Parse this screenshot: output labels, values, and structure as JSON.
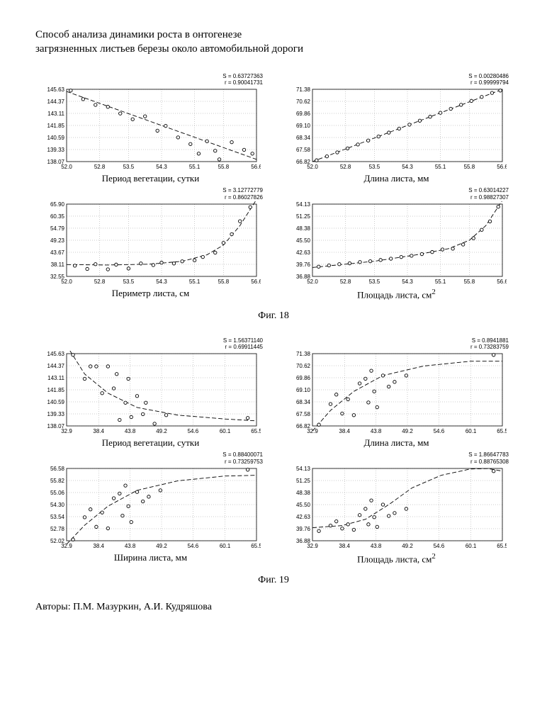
{
  "title_line1": "Способ анализа динамики роста в онтогенезе",
  "title_line2": "загрязненных листьев березы около автомобильной дороги",
  "fig18_caption": "Фиг. 18",
  "fig19_caption": "Фиг. 19",
  "authors_label": "Авторы:  П.М. Мазуркин, А.И. Кудряшова",
  "fig18": {
    "charts": [
      {
        "stats": {
          "S": "S = 0.63727363",
          "r": "r = 0.90041731"
        },
        "xlabel": "Период вегетации, сутки",
        "xlim": [
          52.0,
          56.6
        ],
        "ylim": [
          138.07,
          145.63
        ],
        "yticks": [
          138.07,
          139.33,
          140.59,
          141.85,
          143.11,
          144.37,
          145.63
        ],
        "xticks": [
          52.0,
          52.8,
          53.5,
          54.3,
          55.1,
          55.8,
          56.6
        ],
        "type": "linear-down",
        "points": [
          [
            52.1,
            145.5
          ],
          [
            52.4,
            144.6
          ],
          [
            52.7,
            144.0
          ],
          [
            53.0,
            143.8
          ],
          [
            53.3,
            143.1
          ],
          [
            53.6,
            142.5
          ],
          [
            53.9,
            142.8
          ],
          [
            54.2,
            141.3
          ],
          [
            54.4,
            141.8
          ],
          [
            54.7,
            140.6
          ],
          [
            55.0,
            139.9
          ],
          [
            55.2,
            138.9
          ],
          [
            55.4,
            140.2
          ],
          [
            55.6,
            139.2
          ],
          [
            55.7,
            138.3
          ],
          [
            56.0,
            140.1
          ],
          [
            56.3,
            139.3
          ],
          [
            56.5,
            138.9
          ]
        ],
        "curve": [
          [
            52.0,
            145.4
          ],
          [
            56.6,
            138.3
          ]
        ],
        "colors": {
          "border": "#000",
          "grid": "#bbb",
          "marker": "#000",
          "line": "#000"
        }
      },
      {
        "stats": {
          "S": "S = 0.00280486",
          "r": "r = 0.99999794"
        },
        "xlabel": "Длина листа, мм",
        "xlim": [
          52.0,
          56.6
        ],
        "ylim": [
          66.82,
          71.38
        ],
        "yticks": [
          66.82,
          67.58,
          68.34,
          69.1,
          69.86,
          70.62,
          71.38
        ],
        "xticks": [
          52.0,
          52.8,
          53.5,
          54.3,
          55.1,
          55.8,
          56.6
        ],
        "type": "linear-up",
        "points": [
          [
            52.1,
            66.9
          ],
          [
            52.35,
            67.15
          ],
          [
            52.6,
            67.4
          ],
          [
            52.85,
            67.65
          ],
          [
            53.1,
            67.9
          ],
          [
            53.35,
            68.15
          ],
          [
            53.6,
            68.4
          ],
          [
            53.85,
            68.65
          ],
          [
            54.1,
            68.9
          ],
          [
            54.35,
            69.15
          ],
          [
            54.6,
            69.4
          ],
          [
            54.85,
            69.65
          ],
          [
            55.1,
            69.9
          ],
          [
            55.35,
            70.15
          ],
          [
            55.6,
            70.4
          ],
          [
            55.85,
            70.65
          ],
          [
            56.1,
            70.9
          ],
          [
            56.35,
            71.15
          ],
          [
            56.55,
            71.3
          ]
        ],
        "curve": [
          [
            52.0,
            66.82
          ],
          [
            56.6,
            71.38
          ]
        ],
        "colors": {
          "border": "#000",
          "grid": "#bbb",
          "marker": "#000",
          "line": "#000"
        }
      },
      {
        "stats": {
          "S": "S = 3.12772779",
          "r": "r = 0.86027826"
        },
        "xlabel": "Периметр листа, см",
        "xlabel_sup": "",
        "xlim": [
          52.0,
          56.6
        ],
        "ylim": [
          32.55,
          65.9
        ],
        "yticks": [
          32.55,
          38.11,
          43.67,
          49.23,
          54.79,
          60.35,
          65.9
        ],
        "xticks": [
          52.0,
          52.8,
          53.5,
          54.3,
          55.1,
          55.8,
          56.6
        ],
        "type": "exp-up",
        "points": [
          [
            52.2,
            37.5
          ],
          [
            52.5,
            36.0
          ],
          [
            52.7,
            38.2
          ],
          [
            53.0,
            35.8
          ],
          [
            53.2,
            38.0
          ],
          [
            53.5,
            36.2
          ],
          [
            53.8,
            38.5
          ],
          [
            54.1,
            37.8
          ],
          [
            54.3,
            38.9
          ],
          [
            54.6,
            38.5
          ],
          [
            54.8,
            39.5
          ],
          [
            55.1,
            40.0
          ],
          [
            55.3,
            41.5
          ],
          [
            55.6,
            43.5
          ],
          [
            55.8,
            48.0
          ],
          [
            56.0,
            52.0
          ],
          [
            56.2,
            58.0
          ],
          [
            56.45,
            64.5
          ]
        ],
        "curve": [
          [
            52.0,
            38.0
          ],
          [
            53.0,
            37.8
          ],
          [
            54.0,
            38.2
          ],
          [
            54.8,
            39.5
          ],
          [
            55.4,
            42.5
          ],
          [
            55.8,
            47.0
          ],
          [
            56.2,
            56.0
          ],
          [
            56.6,
            68.0
          ]
        ],
        "colors": {
          "border": "#000",
          "grid": "#bbb",
          "marker": "#000",
          "line": "#000"
        }
      },
      {
        "stats": {
          "S": "S = 0.63014227",
          "r": "r = 0.98827307"
        },
        "xlabel": "Площадь листа, см",
        "xlabel_sup": "2",
        "xlim": [
          52.0,
          56.6
        ],
        "ylim": [
          36.88,
          54.13
        ],
        "yticks": [
          36.88,
          39.76,
          42.63,
          45.5,
          48.38,
          51.25,
          54.13
        ],
        "xticks": [
          52.0,
          52.8,
          53.5,
          54.3,
          55.1,
          55.8,
          56.6
        ],
        "type": "exp-up-slow",
        "points": [
          [
            52.15,
            39.2
          ],
          [
            52.4,
            39.5
          ],
          [
            52.65,
            39.8
          ],
          [
            52.9,
            40.0
          ],
          [
            53.15,
            40.3
          ],
          [
            53.4,
            40.5
          ],
          [
            53.65,
            40.8
          ],
          [
            53.9,
            41.1
          ],
          [
            54.15,
            41.5
          ],
          [
            54.4,
            41.8
          ],
          [
            54.65,
            42.2
          ],
          [
            54.9,
            42.7
          ],
          [
            55.15,
            43.3
          ],
          [
            55.4,
            43.5
          ],
          [
            55.65,
            44.5
          ],
          [
            55.9,
            46.0
          ],
          [
            56.1,
            48.0
          ],
          [
            56.3,
            50.0
          ],
          [
            56.5,
            53.5
          ]
        ],
        "curve": [
          [
            52.0,
            39.0
          ],
          [
            53.5,
            40.5
          ],
          [
            54.5,
            42.0
          ],
          [
            55.3,
            43.5
          ],
          [
            55.8,
            45.5
          ],
          [
            56.2,
            49.0
          ],
          [
            56.6,
            55.0
          ]
        ],
        "colors": {
          "border": "#000",
          "grid": "#bbb",
          "marker": "#000",
          "line": "#000"
        }
      }
    ]
  },
  "fig19": {
    "charts": [
      {
        "stats": {
          "S": "S = 1.56371140",
          "r": "r = 0.69911445"
        },
        "xlabel": "Период вегетации, сутки",
        "xlim": [
          32.9,
          65.5
        ],
        "ylim": [
          138.07,
          145.63
        ],
        "yticks": [
          138.07,
          139.33,
          140.59,
          141.85,
          143.11,
          144.37,
          145.63
        ],
        "xticks": [
          32.9,
          38.4,
          43.8,
          49.2,
          54.6,
          60.1,
          65.5
        ],
        "type": "exp-down",
        "points": [
          [
            34,
            145.5
          ],
          [
            36,
            143.0
          ],
          [
            37,
            144.3
          ],
          [
            38,
            144.3
          ],
          [
            39,
            141.5
          ],
          [
            40,
            144.3
          ],
          [
            41,
            142.0
          ],
          [
            41.5,
            143.5
          ],
          [
            42,
            138.7
          ],
          [
            43,
            140.5
          ],
          [
            43.5,
            143.0
          ],
          [
            44,
            139.0
          ],
          [
            45,
            141.2
          ],
          [
            46,
            139.3
          ],
          [
            46.5,
            140.5
          ],
          [
            48,
            138.3
          ],
          [
            50,
            139.2
          ],
          [
            64,
            138.9
          ]
        ],
        "curve": [
          [
            32.9,
            146.5
          ],
          [
            36,
            143.5
          ],
          [
            40,
            141.5
          ],
          [
            45,
            140.0
          ],
          [
            52,
            139.2
          ],
          [
            60,
            138.8
          ],
          [
            65.5,
            138.6
          ]
        ],
        "colors": {
          "border": "#000",
          "grid": "#bbb",
          "marker": "#000",
          "line": "#000"
        }
      },
      {
        "stats": {
          "S": "S = 0.8941881",
          "r": "r = 0.73283759"
        },
        "xlabel": "Длина листа, мм",
        "xlim": [
          32.9,
          65.5
        ],
        "ylim": [
          66.82,
          71.38
        ],
        "yticks": [
          66.82,
          67.58,
          68.34,
          69.1,
          69.86,
          70.62,
          71.38
        ],
        "xticks": [
          32.9,
          38.4,
          43.8,
          49.2,
          54.6,
          60.1,
          65.5
        ],
        "type": "sat-up",
        "points": [
          [
            34,
            66.9
          ],
          [
            36,
            68.2
          ],
          [
            37,
            68.8
          ],
          [
            38,
            67.6
          ],
          [
            39,
            68.5
          ],
          [
            40,
            67.5
          ],
          [
            41,
            69.5
          ],
          [
            42,
            69.8
          ],
          [
            42.5,
            68.3
          ],
          [
            43,
            70.3
          ],
          [
            43.5,
            69.0
          ],
          [
            44,
            68.0
          ],
          [
            45,
            70.0
          ],
          [
            46,
            69.3
          ],
          [
            47,
            69.6
          ],
          [
            49,
            70.0
          ],
          [
            64,
            71.3
          ]
        ],
        "curve": [
          [
            32.9,
            66.5
          ],
          [
            36,
            67.8
          ],
          [
            40,
            69.0
          ],
          [
            45,
            70.0
          ],
          [
            52,
            70.6
          ],
          [
            60,
            70.9
          ],
          [
            65.5,
            70.9
          ]
        ],
        "colors": {
          "border": "#000",
          "grid": "#bbb",
          "marker": "#000",
          "line": "#000"
        }
      },
      {
        "stats": {
          "S": "S = 0.88400071",
          "r": "r = 0.73259753"
        },
        "xlabel": "Ширина листа, мм",
        "xlim": [
          32.9,
          65.5
        ],
        "ylim": [
          52.02,
          56.58
        ],
        "yticks": [
          52.02,
          52.78,
          53.54,
          54.3,
          55.06,
          55.82,
          56.58
        ],
        "xticks": [
          32.9,
          38.4,
          43.8,
          49.2,
          54.6,
          60.1,
          65.5
        ],
        "type": "sat-up",
        "points": [
          [
            34,
            52.1
          ],
          [
            36,
            53.5
          ],
          [
            37,
            54.0
          ],
          [
            38,
            52.9
          ],
          [
            39,
            53.8
          ],
          [
            40,
            52.8
          ],
          [
            41,
            54.7
          ],
          [
            42,
            55.0
          ],
          [
            42.5,
            53.6
          ],
          [
            43,
            55.5
          ],
          [
            43.5,
            54.2
          ],
          [
            44,
            53.2
          ],
          [
            45,
            55.1
          ],
          [
            46,
            54.5
          ],
          [
            47,
            54.8
          ],
          [
            49,
            55.2
          ],
          [
            64,
            56.5
          ]
        ],
        "curve": [
          [
            32.9,
            51.8
          ],
          [
            36,
            53.0
          ],
          [
            40,
            54.2
          ],
          [
            45,
            55.2
          ],
          [
            52,
            55.8
          ],
          [
            60,
            56.1
          ],
          [
            65.5,
            56.15
          ]
        ],
        "colors": {
          "border": "#000",
          "grid": "#bbb",
          "marker": "#000",
          "line": "#000"
        }
      },
      {
        "stats": {
          "S": "S = 1.86647783",
          "r": "r = 0.88765308"
        },
        "xlabel": "Площадь листа, см",
        "xlabel_sup": "2",
        "xlim": [
          32.9,
          65.5
        ],
        "ylim": [
          36.88,
          54.13
        ],
        "yticks": [
          36.88,
          39.76,
          42.63,
          45.5,
          48.38,
          51.25,
          54.13
        ],
        "xticks": [
          32.9,
          38.4,
          43.8,
          49.2,
          54.6,
          60.1,
          65.5
        ],
        "type": "sigmoid",
        "points": [
          [
            34,
            39.2
          ],
          [
            36,
            40.5
          ],
          [
            37,
            41.5
          ],
          [
            38,
            39.8
          ],
          [
            39,
            40.8
          ],
          [
            40,
            39.5
          ],
          [
            41,
            43.0
          ],
          [
            42,
            44.5
          ],
          [
            42.5,
            40.8
          ],
          [
            43,
            46.5
          ],
          [
            43.5,
            42.5
          ],
          [
            44,
            40.2
          ],
          [
            45,
            45.5
          ],
          [
            46,
            42.8
          ],
          [
            47,
            43.5
          ],
          [
            49,
            44.5
          ],
          [
            64,
            53.5
          ]
        ],
        "curve": [
          [
            32.9,
            40.0
          ],
          [
            38,
            40.5
          ],
          [
            42,
            42.0
          ],
          [
            46,
            45.5
          ],
          [
            50,
            49.5
          ],
          [
            55,
            52.5
          ],
          [
            60,
            54.0
          ],
          [
            63,
            54.1
          ],
          [
            65.5,
            53.5
          ]
        ],
        "colors": {
          "border": "#000",
          "grid": "#bbb",
          "marker": "#000",
          "line": "#000"
        }
      }
    ]
  }
}
